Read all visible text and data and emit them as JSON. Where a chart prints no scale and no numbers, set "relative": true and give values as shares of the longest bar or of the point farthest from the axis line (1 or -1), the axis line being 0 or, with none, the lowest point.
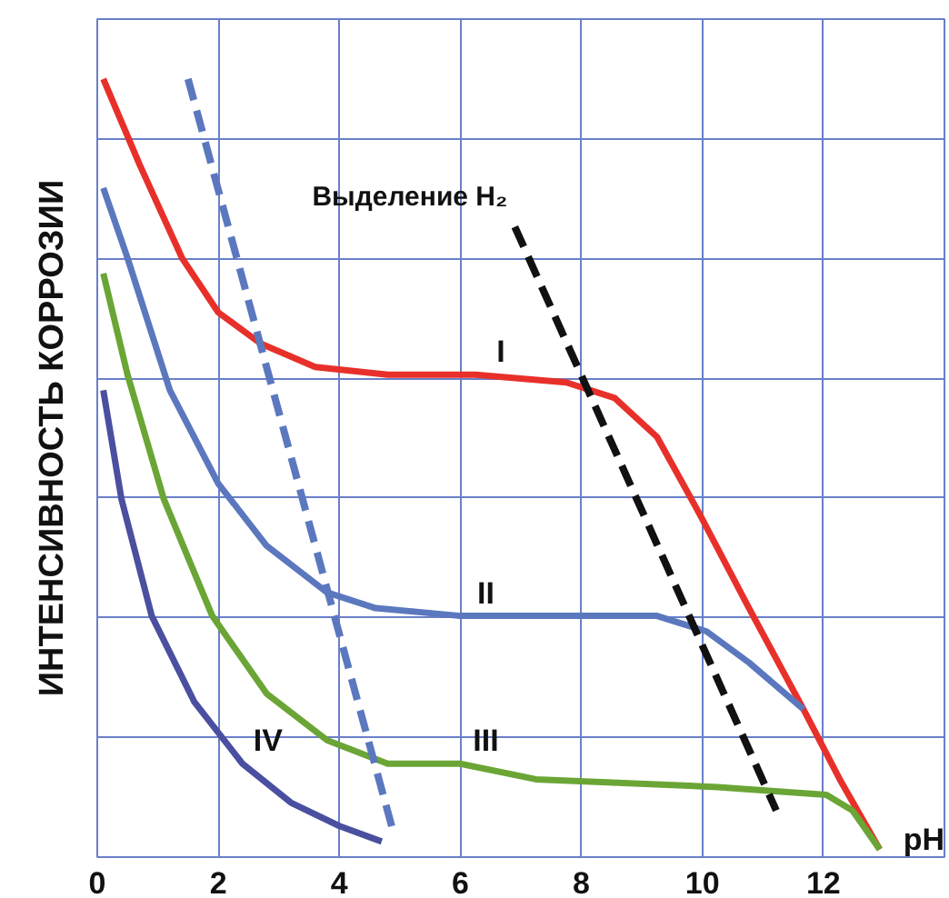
{
  "chart_data": {
    "type": "line",
    "relative": true,
    "xlabel": "pH",
    "ylabel": "ИНТЕНСИВНОСТЬ КОРРОЗИИ",
    "xlim": [
      0,
      14
    ],
    "xticks": [
      0,
      2,
      4,
      6,
      8,
      10,
      12,
      {
        "value": 14,
        "label": null
      }
    ],
    "grid": true,
    "legend": false,
    "marker": "none",
    "series": [
      {
        "name": "I",
        "color": "#e8302a",
        "x": [
          0.1,
          0.7,
          1.4,
          2.0,
          2.7,
          3.6,
          4.8,
          6.25,
          7.75,
          8.55,
          9.25,
          9.96,
          10.77,
          11.67,
          12.27,
          12.93
        ],
        "values": [
          1.0,
          0.89,
          0.77,
          0.7,
          0.66,
          0.63,
          0.62,
          0.62,
          0.61,
          0.59,
          0.54,
          0.44,
          0.32,
          0.19,
          0.1,
          0.01
        ]
      },
      {
        "name": "II",
        "color": "#5b78bf",
        "x": [
          0.1,
          0.5,
          1.2,
          2.0,
          2.8,
          3.8,
          4.6,
          6.0,
          8.25,
          9.25,
          10.07,
          10.77,
          11.67
        ],
        "values": [
          0.86,
          0.77,
          0.6,
          0.48,
          0.4,
          0.34,
          0.32,
          0.31,
          0.31,
          0.31,
          0.29,
          0.25,
          0.19
        ]
      },
      {
        "name": "III",
        "color": "#6aa535",
        "x": [
          0.1,
          0.5,
          1.1,
          1.9,
          2.8,
          3.8,
          4.8,
          6.0,
          7.25,
          10.25,
          12.05,
          12.48,
          12.93
        ],
        "values": [
          0.75,
          0.62,
          0.46,
          0.31,
          0.21,
          0.15,
          0.12,
          0.12,
          0.1,
          0.09,
          0.08,
          0.06,
          0.01
        ]
      },
      {
        "name": "IV",
        "color": "#4a4fa0",
        "x": [
          0.1,
          0.4,
          0.9,
          1.6,
          2.4,
          3.2,
          4.0,
          4.7
        ],
        "values": [
          0.6,
          0.46,
          0.31,
          0.2,
          0.12,
          0.07,
          0.04,
          0.02
        ]
      },
      {
        "color": "#5b78bf",
        "line_style": "dashed",
        "x": [
          1.5,
          4.9
        ],
        "values": [
          1.0,
          0.03
        ]
      },
      {
        "name": "Выделение H₂",
        "color": "#111111",
        "line_style": "dashed",
        "x": [
          6.9,
          11.22
        ],
        "values": [
          0.81,
          0.06
        ]
      }
    ]
  }
}
